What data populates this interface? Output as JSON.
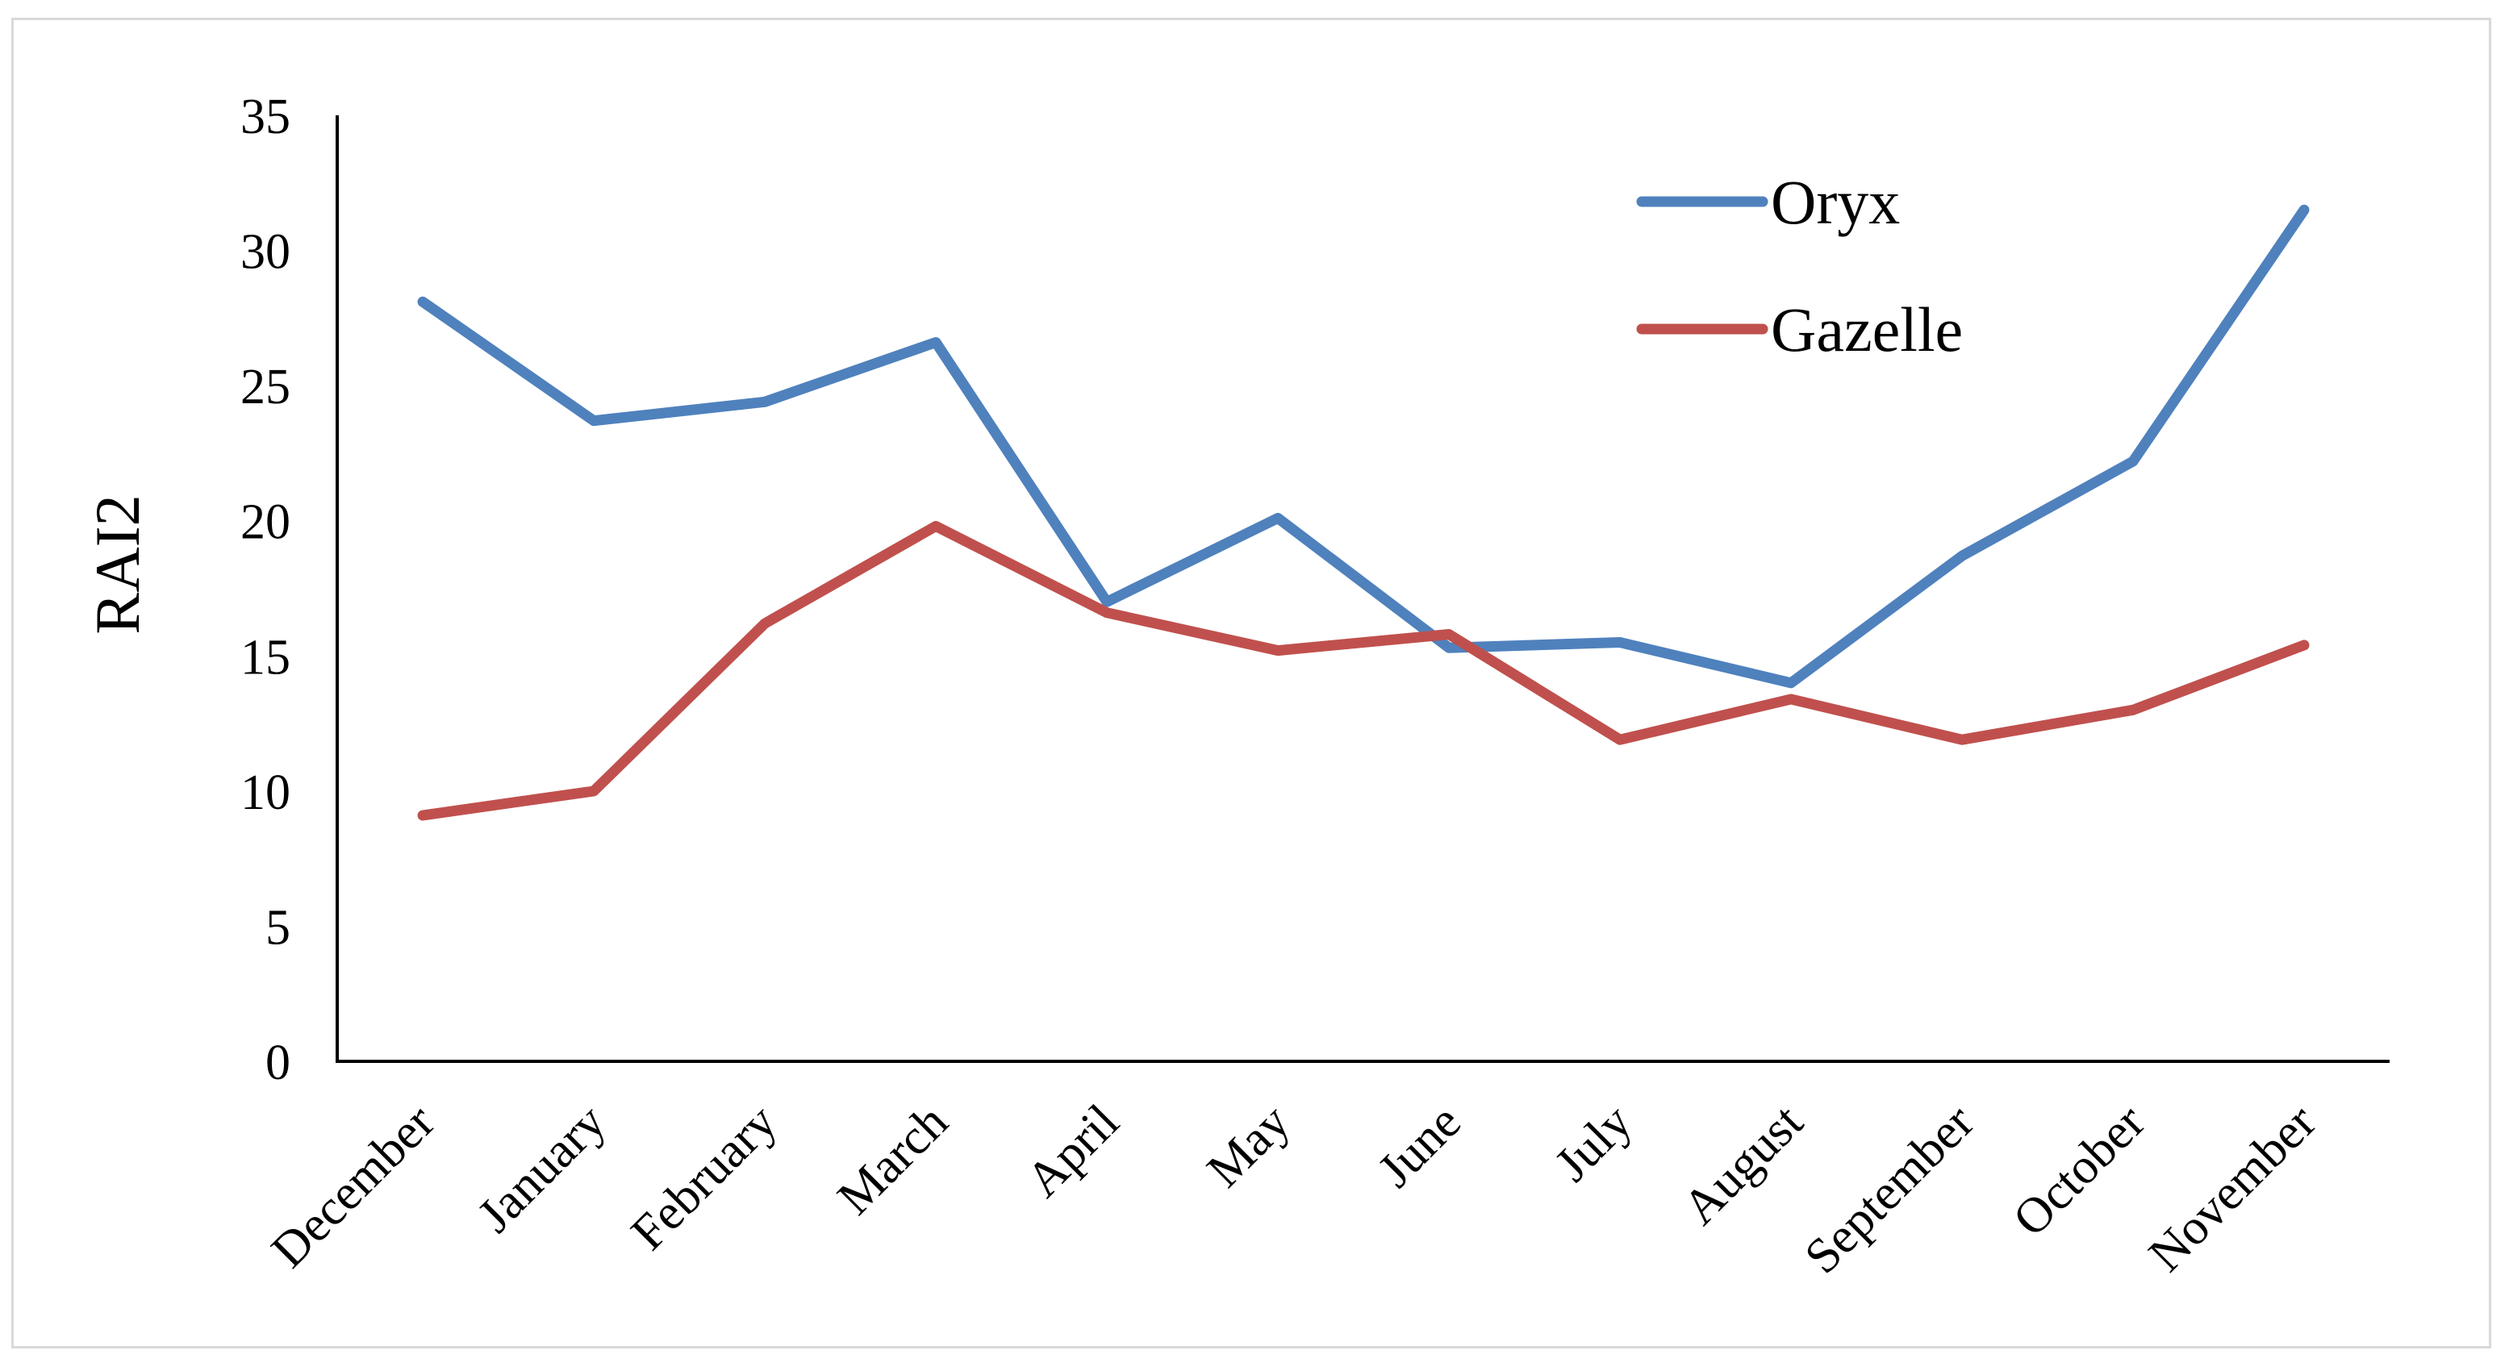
{
  "chart_data": {
    "type": "line",
    "title": "",
    "xlabel": "",
    "ylabel": "RAI2",
    "ylim": [
      0,
      35
    ],
    "yticks": [
      0,
      5,
      10,
      15,
      20,
      25,
      30,
      35
    ],
    "grid": false,
    "legend_position": "top-right",
    "categories": [
      "December",
      "January",
      "February",
      "March",
      "April",
      "May",
      "June",
      "July",
      "August",
      "September",
      "October",
      "November"
    ],
    "series": [
      {
        "name": "Oryx",
        "color": "#4f81bd",
        "values": [
          28.1,
          23.7,
          24.4,
          26.6,
          17.0,
          20.1,
          15.3,
          15.5,
          14.0,
          18.7,
          22.2,
          31.5
        ]
      },
      {
        "name": "Gazelle",
        "color": "#c0504d",
        "values": [
          9.1,
          10.0,
          16.2,
          19.8,
          16.6,
          15.2,
          15.8,
          11.9,
          13.4,
          11.9,
          13.0,
          15.4
        ]
      }
    ]
  }
}
